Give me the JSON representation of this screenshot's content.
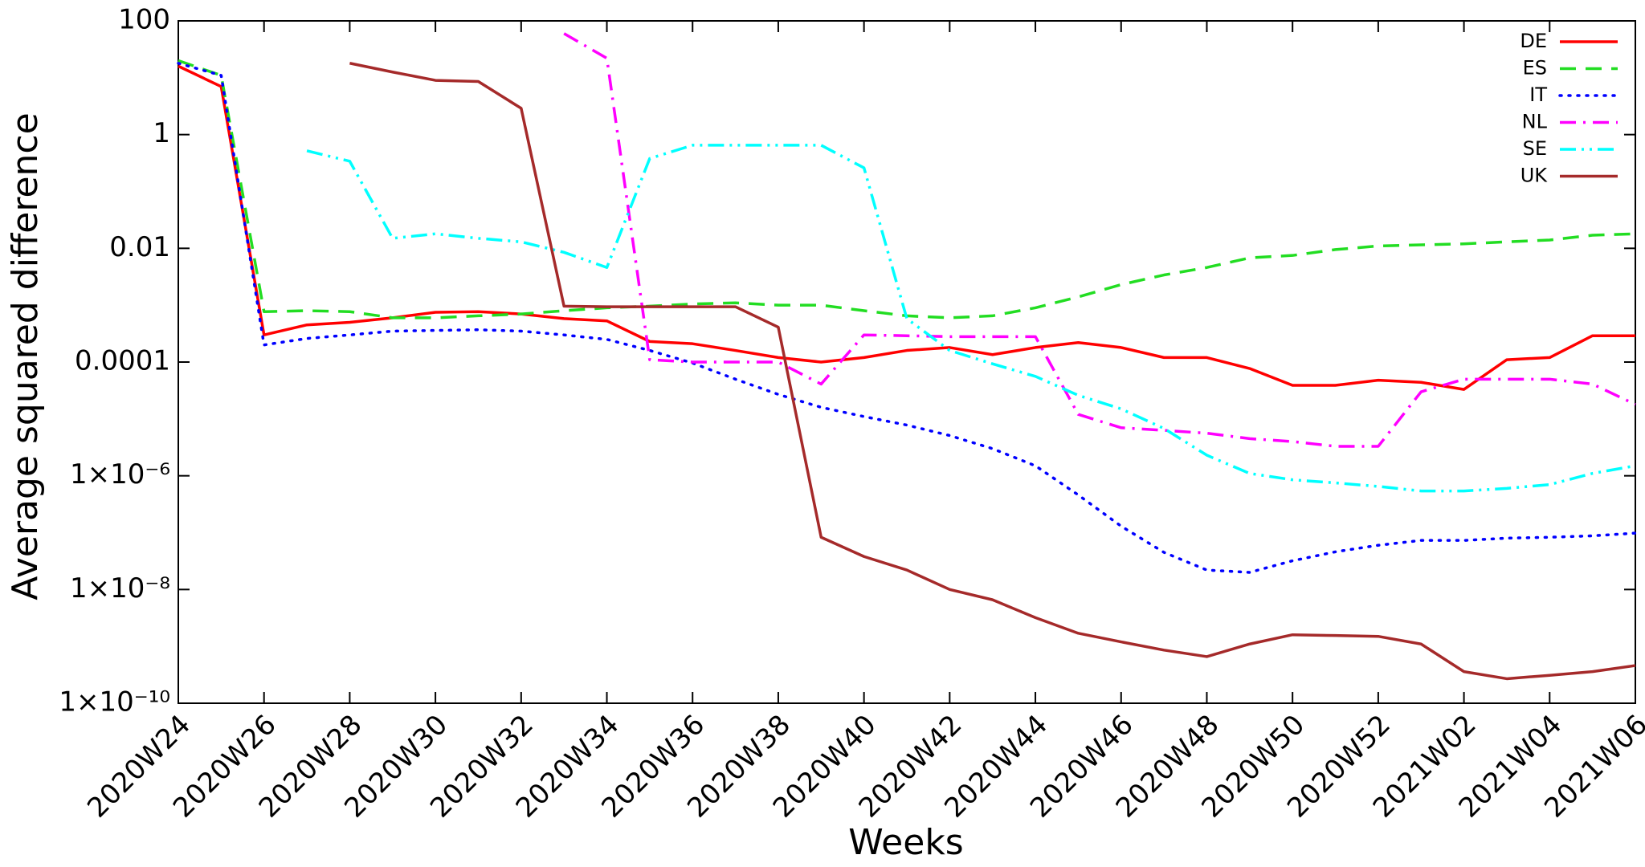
{
  "chart_data": {
    "type": "line",
    "xlabel": "Weeks",
    "ylabel": "Average squared difference",
    "yscale": "log",
    "ylim": [
      1e-10,
      100
    ],
    "yticks": [
      100,
      1,
      0.01,
      0.0001,
      {
        "value": 1e-06,
        "label": "1×10⁻⁶"
      },
      {
        "value": 1e-08,
        "label": "1×10⁻⁸"
      },
      {
        "value": 1e-10,
        "label": "1×10⁻¹⁰"
      }
    ],
    "legend": "upper right",
    "grid": false,
    "categories": [
      "2020W24",
      null,
      "2020W26",
      null,
      "2020W28",
      null,
      "2020W30",
      null,
      "2020W32",
      null,
      "2020W34",
      null,
      "2020W36",
      null,
      "2020W38",
      null,
      "2020W40",
      null,
      "2020W42",
      null,
      "2020W44",
      null,
      "2020W46",
      null,
      "2020W48",
      null,
      "2020W50",
      null,
      "2020W52",
      null,
      "2021W02",
      null,
      "2021W04",
      null,
      "2021W06"
    ],
    "series": [
      {
        "name": "DE",
        "color": "#ff0000",
        "dash": "solid",
        "values": [
          16,
          7,
          0.0003,
          0.00045,
          0.0005,
          0.0006,
          0.00075,
          0.00077,
          0.0007,
          0.00058,
          0.00053,
          0.00023,
          0.00021,
          0.00016,
          0.00012,
          0.0001,
          0.00012,
          0.00016,
          0.00018,
          0.000135,
          0.00018,
          0.00022,
          0.00018,
          0.00012,
          0.00012,
          7.7e-05,
          3.9e-05,
          3.9e-05,
          4.8e-05,
          4.4e-05,
          3.3e-05,
          0.00011,
          0.00012,
          0.00029,
          0.00029
        ]
      },
      {
        "name": "ES",
        "color": "#22dd22",
        "dash": "dashed",
        "values": [
          20,
          11,
          0.00077,
          0.0008,
          0.00077,
          0.0006,
          0.0006,
          0.00065,
          0.0007,
          0.0008,
          0.0009,
          0.00096,
          0.00105,
          0.0011,
          0.001,
          0.001,
          0.0008,
          0.00065,
          0.0006,
          0.00065,
          0.0009,
          0.0014,
          0.0023,
          0.0034,
          0.0046,
          0.0068,
          0.0075,
          0.0095,
          0.011,
          0.0115,
          0.012,
          0.013,
          0.014,
          0.017,
          0.018
        ]
      },
      {
        "name": "IT",
        "color": "#0000ff",
        "dash": "dotted",
        "values": [
          18,
          11,
          0.0002,
          0.00026,
          0.0003,
          0.00035,
          0.00036,
          0.00037,
          0.00035,
          0.0003,
          0.00025,
          0.00016,
          9.6e-05,
          5e-05,
          2.7e-05,
          1.6e-05,
          1.1e-05,
          7.8e-06,
          5.1e-06,
          3e-06,
          1.5e-06,
          4.6e-07,
          1.3e-07,
          4.5e-08,
          2.2e-08,
          2e-08,
          3.2e-08,
          4.6e-08,
          6e-08,
          7.3e-08,
          7.3e-08,
          8e-08,
          8.3e-08,
          8.8e-08,
          9.8e-08
        ]
      },
      {
        "name": "NL",
        "color": "#ff00ff",
        "dash": "dashdot",
        "values": [
          null,
          null,
          null,
          null,
          null,
          null,
          null,
          null,
          null,
          60,
          22,
          0.00011,
          0.0001,
          0.0001,
          0.0001,
          4.1e-05,
          0.0003,
          0.00029,
          0.00028,
          0.00028,
          0.00028,
          1.2e-05,
          7e-06,
          6.3e-06,
          5.6e-06,
          4.5e-06,
          4e-06,
          3.3e-06,
          3.3e-06,
          3e-05,
          5e-05,
          5e-05,
          5e-05,
          4.1e-05,
          1.8e-05
        ]
      },
      {
        "name": "SE",
        "color": "#00ffff",
        "dash": "dashdotdot",
        "values": [
          null,
          null,
          null,
          0.52,
          0.34,
          0.015,
          0.018,
          0.015,
          0.013,
          0.0085,
          0.0046,
          0.38,
          0.65,
          0.65,
          0.65,
          0.65,
          0.26,
          0.00058,
          0.00016,
          9.3e-05,
          5.6e-05,
          2.6e-05,
          1.5e-05,
          6.8e-06,
          2.3e-06,
          1.1e-06,
          8.5e-07,
          7.5e-07,
          6.5e-07,
          5.4e-07,
          5.4e-07,
          6e-07,
          7e-07,
          1.1e-06,
          1.5e-06
        ]
      },
      {
        "name": "UK",
        "color": "#a52a2a",
        "dash": "solid",
        "values": [
          null,
          null,
          null,
          null,
          18,
          12.6,
          9,
          8.6,
          2.9,
          0.00096,
          0.00094,
          0.00094,
          0.00094,
          0.00094,
          0.00041,
          8.3e-08,
          3.8e-08,
          2.2e-08,
          1e-08,
          6.6e-09,
          3.2e-09,
          1.7e-09,
          1.2e-09,
          8.6e-10,
          6.6e-10,
          1.1e-09,
          1.6e-09,
          1.55e-09,
          1.5e-09,
          1.1e-09,
          3.6e-10,
          2.7e-10,
          3.1e-10,
          3.6e-10,
          4.6e-10
        ]
      }
    ]
  }
}
